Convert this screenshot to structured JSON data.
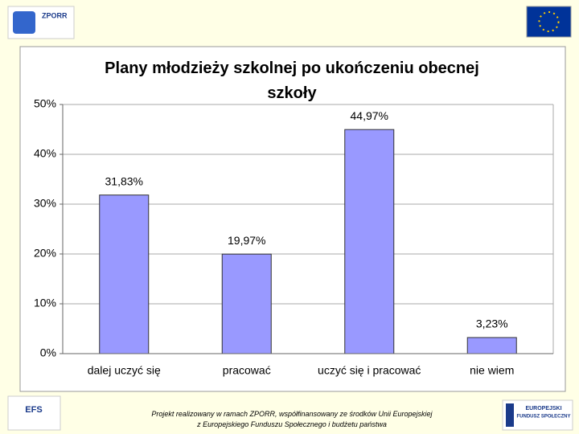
{
  "chart_data": {
    "type": "bar",
    "title": "Plany młodzieży szkolnej po ukończeniu obecnej szkoły",
    "categories": [
      "dalej uczyć się",
      "pracować",
      "uczyć się i pracować",
      "nie wiem"
    ],
    "values": [
      31.83,
      19.97,
      44.97,
      3.23
    ],
    "value_labels": [
      "31,83%",
      "19,97%",
      "44,97%",
      "3,23%"
    ],
    "color": "#9999ff",
    "ylim": [
      0,
      50
    ],
    "yticks": [
      {
        "value": 0,
        "label": "0%"
      },
      {
        "value": 10,
        "label": "10%"
      },
      {
        "value": 20,
        "label": "20%"
      },
      {
        "value": 30,
        "label": "30%"
      },
      {
        "value": 40,
        "label": "40%"
      },
      {
        "value": 50,
        "label": "50%"
      }
    ],
    "grid": true
  },
  "header": {
    "logo_text": "ZPORR"
  },
  "footer": {
    "lines": [
      "Projekt realizowany w ramach ZPORR, współfinansowany ze środków Unii Europejskiej",
      "z Europejskiego Funduszu Społecznego i budżetu państwa"
    ],
    "left_logo_text": "EFS",
    "right_logo_lines": [
      "EUROPEJSKI",
      "FUNDUSZ SPOŁECZNY"
    ]
  }
}
